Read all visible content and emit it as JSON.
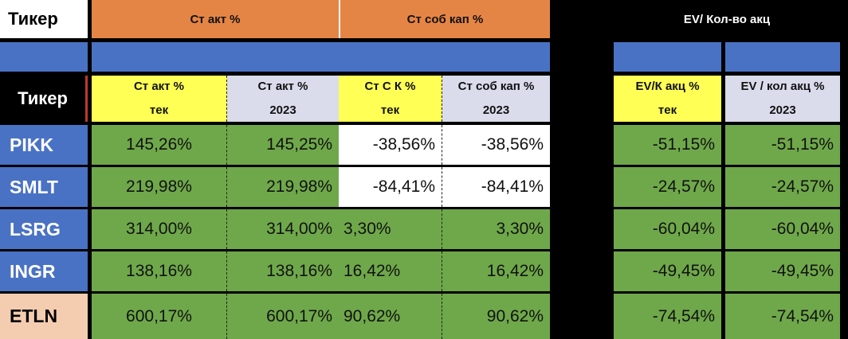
{
  "header": {
    "ticker_title": "Тикер",
    "group_st_akt": "Ст акт %",
    "group_st_sob_kap": "Ст соб кап %",
    "group_ev": "EV/ Кол-во акц"
  },
  "subheader": {
    "ticker": "Тикер",
    "col1_line1": "Ст акт %",
    "col1_line2": "тек",
    "col2_line1": "Ст акт %",
    "col2_line2": "2023",
    "col3_line1": "Ст С К %",
    "col3_line2": "тек",
    "col4_line1": "Ст соб кап %",
    "col4_line2": "2023",
    "col5_line1": "EV/К акц %",
    "col5_line2": "тек",
    "col6_line1": "EV / кол акц %",
    "col6_line2": "2023"
  },
  "rows": [
    {
      "ticker": "PIKK",
      "c1": "145,26%",
      "c2": "145,25%",
      "c3": "-38,56%",
      "c4": "-38,56%",
      "c5": "-51,15%",
      "c6": "-51,15%"
    },
    {
      "ticker": "SMLT",
      "c1": "219,98%",
      "c2": "219,98%",
      "c3": "-84,41%",
      "c4": "-84,41%",
      "c5": "-24,57%",
      "c6": "-24,57%"
    },
    {
      "ticker": "LSRG",
      "c1": "314,00%",
      "c2": "314,00%",
      "c3": "3,30%",
      "c4": "3,30%",
      "c5": "-60,04%",
      "c6": "-60,04%"
    },
    {
      "ticker": "INGR",
      "c1": "138,16%",
      "c2": "138,16%",
      "c3": "16,42%",
      "c4": "16,42%",
      "c5": "-49,45%",
      "c6": "-49,45%"
    },
    {
      "ticker": "ETLN",
      "c1": "600,17%",
      "c2": "600,17%",
      "c3": "90,62%",
      "c4": "90,62%",
      "c5": "-74,54%",
      "c6": "-74,54%"
    }
  ],
  "colors": {
    "orange_header": "#E58545",
    "blue_band": "#4A72C4",
    "yellow_sub": "#FFFF55",
    "lavender_sub": "#DADCEC",
    "green_cell": "#6FA84A",
    "white_cell": "#FFFFFF",
    "etln_ticker": "#F4CDB0"
  }
}
